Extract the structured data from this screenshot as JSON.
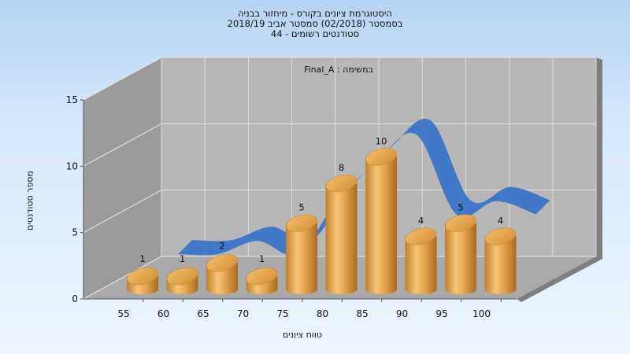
{
  "header": {
    "line1": "היסטוגרמת ציונים בקורס - מיחזור בבניה",
    "line2": "בסמסטר  (02/2018)  סמסטר אביב 2018/19",
    "line3": "סטודנטים רשומים - 44"
  },
  "chart_data": {
    "type": "bar",
    "subtitle": "במשימה : Final_A",
    "xlabel": "טווח ציונים",
    "ylabel": "מספר סטודנטים",
    "categories": [
      "55",
      "60",
      "65",
      "70",
      "75",
      "80",
      "85",
      "90",
      "95",
      "100"
    ],
    "values": [
      1,
      1,
      2,
      1,
      5,
      8,
      10,
      4,
      5,
      4
    ],
    "ylim": [
      0,
      15
    ],
    "yticks": [
      "0",
      "5",
      "10",
      "15"
    ],
    "grid": true,
    "trend_line": true,
    "colors": {
      "bar": "#e1a14a",
      "trend": "#3a74c8",
      "back_wall": "#b7b7b7",
      "side_wall": "#9b9b9b",
      "floor": "#a9a9a9"
    }
  }
}
